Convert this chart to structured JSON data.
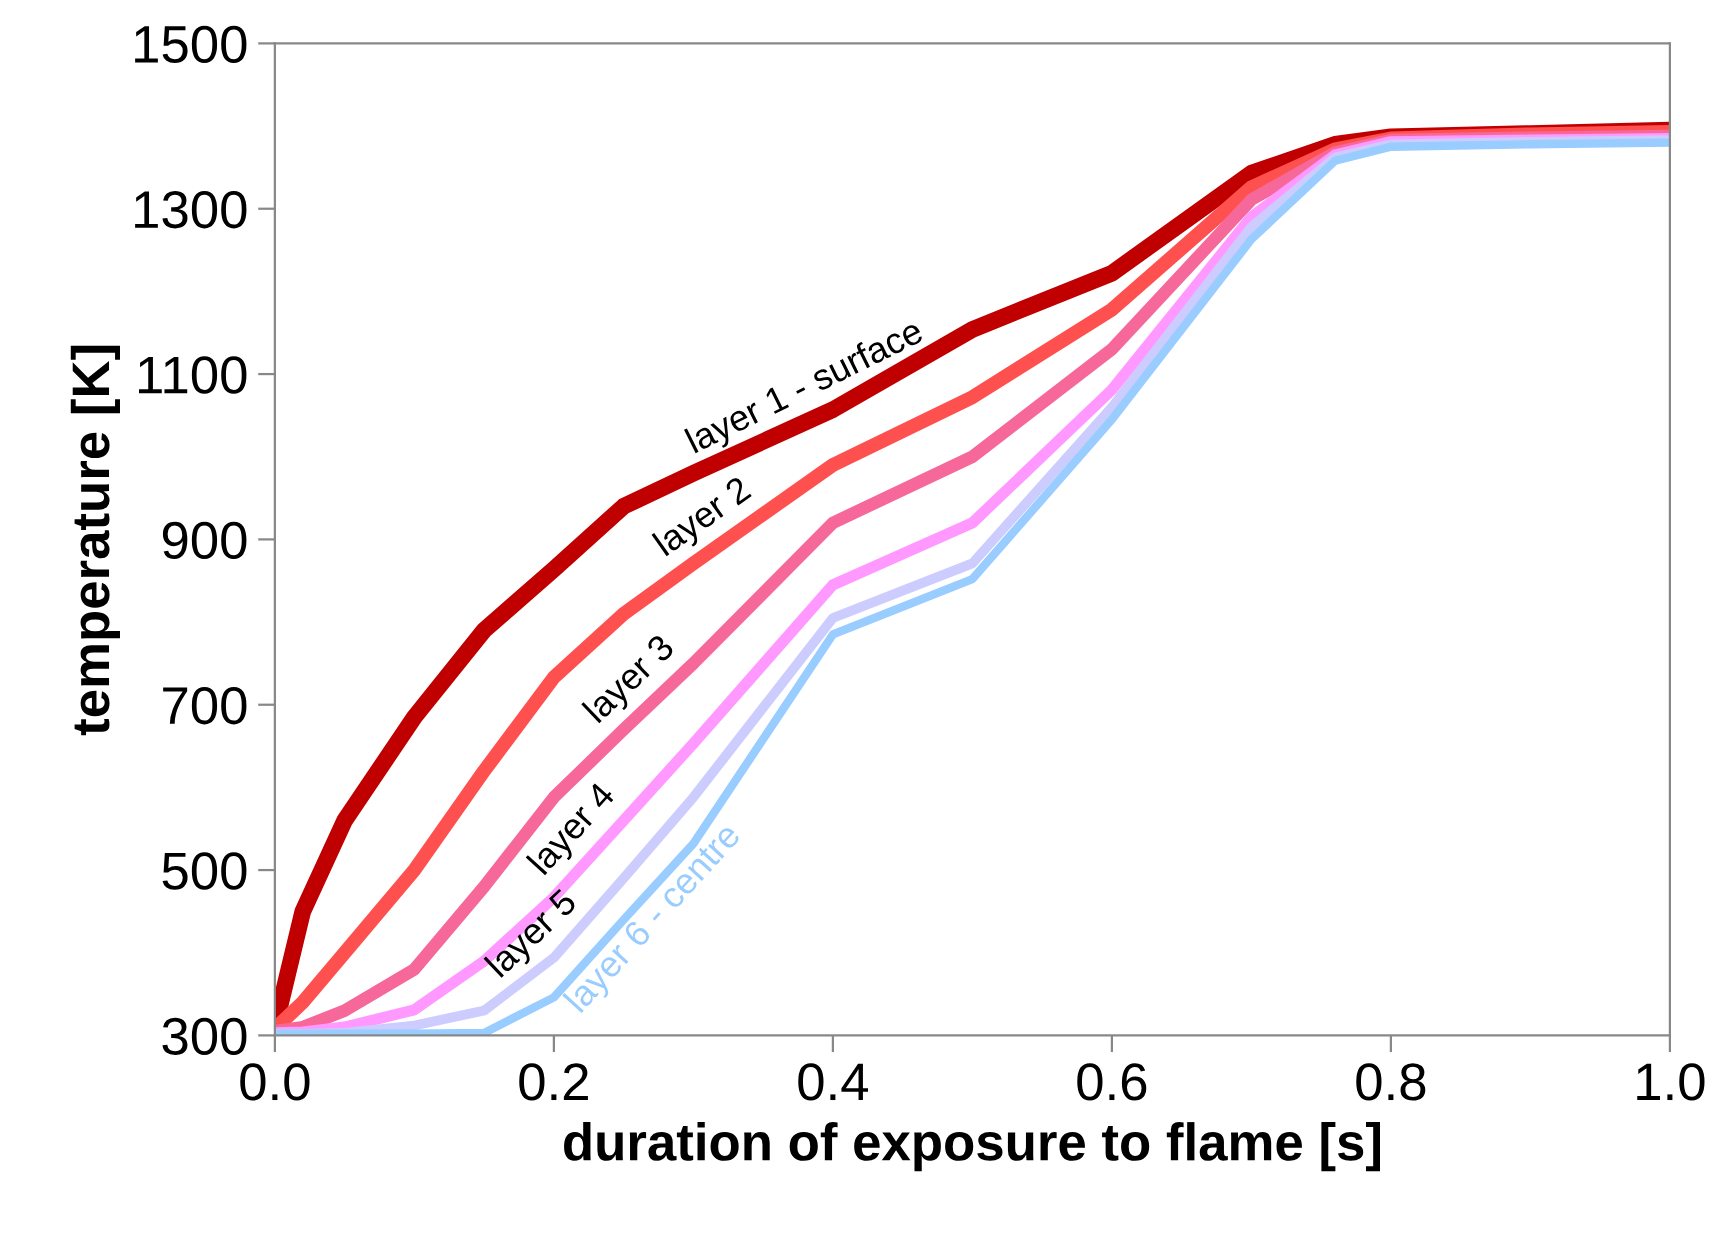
{
  "chart_data": {
    "type": "line",
    "xlabel": "duration of exposure to flame [s]",
    "ylabel": "temperature [K]",
    "xlim": [
      0,
      1
    ],
    "xticks": [
      {
        "value": 0,
        "label": "0.0"
      },
      {
        "value": 0.2,
        "label": "0.2"
      },
      {
        "value": 0.4,
        "label": "0.4"
      },
      {
        "value": 0.6,
        "label": "0.6"
      },
      {
        "value": 0.8,
        "label": "0.8"
      },
      {
        "value": 1,
        "label": "1.0"
      }
    ],
    "ylim": [
      300,
      1500
    ],
    "yticks": [
      300,
      500,
      700,
      900,
      1100,
      1300,
      1500
    ],
    "grid": false,
    "legend": false,
    "marker": "none",
    "line_style": "solid",
    "x": [
      0,
      0.02,
      0.05,
      0.1,
      0.15,
      0.2,
      0.25,
      0.3,
      0.4,
      0.5,
      0.6,
      0.7,
      0.76,
      0.8,
      0.9,
      1.0
    ],
    "series": [
      {
        "name": "layer 1 - surface",
        "color": "#c00000",
        "values": [
          310,
          450,
          560,
          685,
          790,
          864,
          940,
          980,
          1057,
          1154,
          1222,
          1343,
          1378,
          1387,
          1391,
          1395
        ]
      },
      {
        "name": "layer 2",
        "color": "#ff5050",
        "values": [
          308,
          340,
          400,
          500,
          620,
          733,
          810,
          871,
          990,
          1072,
          1178,
          1326,
          1372,
          1385,
          1390,
          1393
        ]
      },
      {
        "name": "layer 3",
        "color": "#f7689a",
        "values": [
          305,
          310,
          330,
          380,
          480,
          588,
          670,
          750,
          920,
          1000,
          1130,
          1311,
          1368,
          1383,
          1386,
          1388
        ]
      },
      {
        "name": "layer 4",
        "color": "#ff99ff",
        "values": [
          303,
          304,
          310,
          331,
          390,
          467,
          560,
          653,
          845,
          920,
          1081,
          1290,
          1365,
          1381,
          1383,
          1385
        ]
      },
      {
        "name": "layer 5",
        "color": "#ccccff",
        "values": [
          302,
          302,
          303,
          312,
          330,
          394,
          490,
          588,
          805,
          871,
          1060,
          1278,
          1362,
          1378,
          1381,
          1383
        ]
      },
      {
        "name": "layer 6 - centre",
        "color": "#99ccff",
        "values": [
          302,
          302,
          302,
          302,
          303,
          346,
          440,
          532,
          785,
          852,
          1045,
          1263,
          1358,
          1375,
          1378,
          1380
        ]
      }
    ]
  }
}
